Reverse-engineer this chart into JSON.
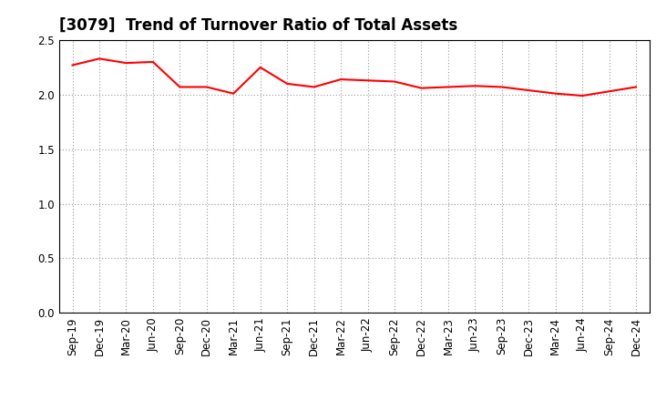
{
  "title": "[3079]  Trend of Turnover Ratio of Total Assets",
  "x_labels": [
    "Sep-19",
    "Dec-19",
    "Mar-20",
    "Jun-20",
    "Sep-20",
    "Dec-20",
    "Mar-21",
    "Jun-21",
    "Sep-21",
    "Dec-21",
    "Mar-22",
    "Jun-22",
    "Sep-22",
    "Dec-22",
    "Mar-23",
    "Jun-23",
    "Sep-23",
    "Dec-23",
    "Mar-24",
    "Jun-24",
    "Sep-24",
    "Dec-24"
  ],
  "y_values": [
    2.27,
    2.33,
    2.29,
    2.3,
    2.07,
    2.07,
    2.01,
    2.25,
    2.1,
    2.07,
    2.14,
    2.13,
    2.12,
    2.06,
    2.07,
    2.08,
    2.07,
    2.04,
    2.01,
    1.99,
    2.03,
    2.07
  ],
  "ylim": [
    0.0,
    2.5
  ],
  "yticks": [
    0.0,
    0.5,
    1.0,
    1.5,
    2.0,
    2.5
  ],
  "line_color": "#ff0000",
  "line_width": 1.5,
  "background_color": "#ffffff",
  "grid_color": "#999999",
  "title_fontsize": 12,
  "tick_fontsize": 8.5
}
